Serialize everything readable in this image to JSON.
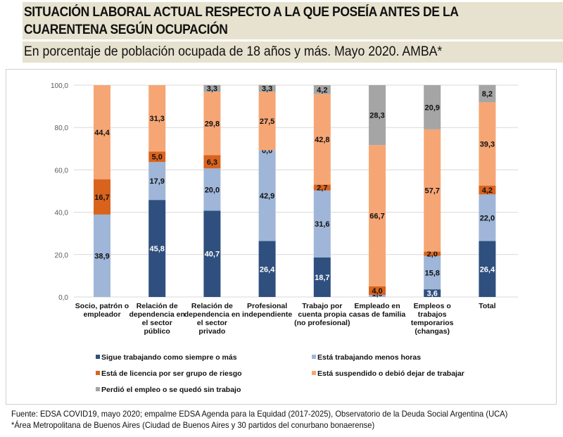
{
  "header": {
    "title_line1": "SITUACIÓN LABORAL ACTUAL RESPECTO A LA QUE POSEÍA ANTES DE LA",
    "title_line2": "CUARENTENA  SEGÚN OCUPACIÓN",
    "subtitle": "En porcentaje de población ocupada de 18 años y más. Mayo 2020. AMBA*"
  },
  "footer": {
    "source": "Fuente: EDSA COVID19, mayo 2020; empalme EDSA Agenda para la Equidad (2017-2025), Observatorio de la Deuda Social Argentina (UCA)",
    "note": "*Área Metropolitana de Buenos Aires (Ciudad de Buenos Aires y 30 partidos del conurbano bonaerense)"
  },
  "chart_data": {
    "type": "bar",
    "stacked": true,
    "title": "SITUACIÓN LABORAL ACTUAL RESPECTO A LA QUE POSEÍA ANTES DE LA CUARENTENA SEGÚN OCUPACIÓN",
    "subtitle": "En porcentaje de población ocupada de 18 años y más. Mayo 2020. AMBA*",
    "xlabel": "",
    "ylabel": "",
    "ylim": [
      0,
      100
    ],
    "yticks": [
      "0,0",
      "20,0",
      "40,0",
      "60,0",
      "80,0",
      "100,0"
    ],
    "grid": true,
    "legend_position": "bottom",
    "categories": [
      [
        "Socio, patrón o",
        "empleador"
      ],
      [
        "Relación de",
        "dependencia en",
        "el sector",
        "público"
      ],
      [
        "Relación de",
        "dependencia en",
        "el sector",
        "privado"
      ],
      [
        "Profesional",
        "independiente"
      ],
      [
        "Trabajo por",
        "cuenta propia",
        "(no profesional)"
      ],
      [
        "Empleado en",
        "casas de familia"
      ],
      [
        "Empleos o",
        "trabajos",
        "temporarios",
        "(changas)"
      ],
      [
        "Total"
      ]
    ],
    "series": [
      {
        "name": "Sigue trabajando como siempre o más",
        "color": "#2f4f7f",
        "label_color": "#ffffff",
        "values": [
          0,
          45.8,
          40.7,
          26.4,
          18.7,
          0,
          3.6,
          26.4
        ],
        "labels": [
          "",
          "45,8",
          "40,7",
          "26,4",
          "18,7",
          "",
          "3,6",
          "26,4"
        ]
      },
      {
        "name": "Está trabajando menos horas",
        "color": "#9fb6d8",
        "label_color": "#111111",
        "values": [
          38.9,
          17.9,
          20.0,
          42.9,
          31.6,
          1.0,
          15.8,
          22.0
        ],
        "labels": [
          "38,9",
          "17,9",
          "20,0",
          "42,9",
          "31,6",
          "1,0",
          "15,8",
          "22,0"
        ]
      },
      {
        "name": "Está de licencia por ser grupo de riesgo",
        "color": "#d9631d",
        "label_color": "#111111",
        "values": [
          16.7,
          5.0,
          6.3,
          0.0,
          2.7,
          4.0,
          2.0,
          4.2
        ],
        "labels": [
          "16,7",
          "5,0",
          "6,3",
          "0,0",
          "2,7",
          "4,0",
          "2,0",
          "4,2"
        ]
      },
      {
        "name": "Está suspendido o debió dejar de trabajar",
        "color": "#f6a675",
        "label_color": "#111111",
        "values": [
          44.4,
          31.3,
          29.8,
          27.5,
          42.8,
          66.7,
          57.7,
          39.3
        ],
        "labels": [
          "44,4",
          "31,3",
          "29,8",
          "27,5",
          "42,8",
          "66,7",
          "57,7",
          "39,3"
        ]
      },
      {
        "name": "Perdió el empleo o se quedó sin trabajo",
        "color": "#a5a5a5",
        "label_color": "#111111",
        "values": [
          0,
          0,
          3.3,
          3.3,
          4.2,
          28.3,
          20.9,
          8.2
        ],
        "labels": [
          "",
          "",
          "3,3",
          "3,3",
          "4,2",
          "28,3",
          "20,9",
          "8,2"
        ]
      }
    ]
  }
}
